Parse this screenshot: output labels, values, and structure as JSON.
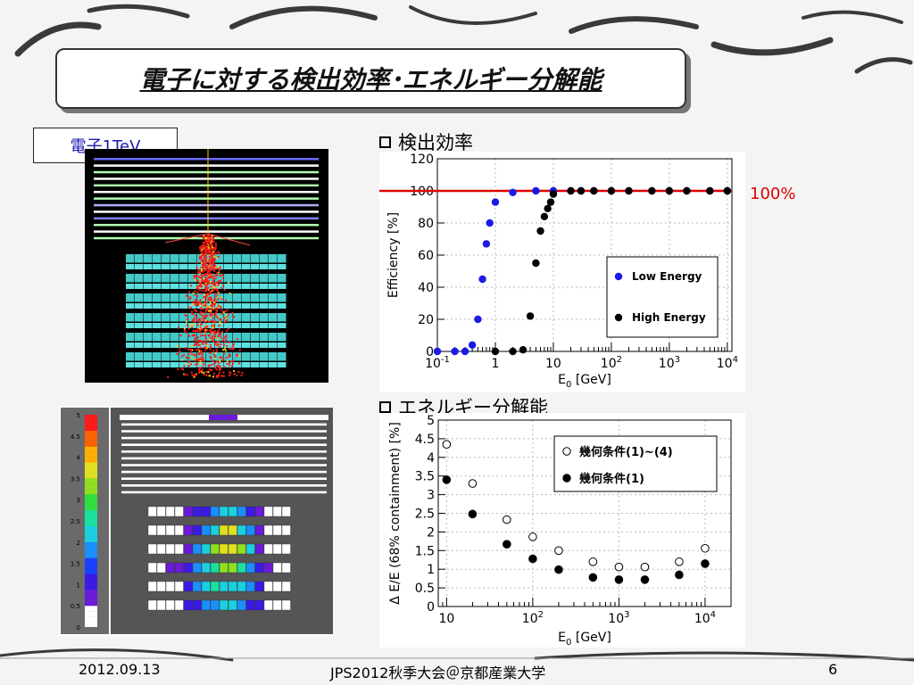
{
  "slide": {
    "title": "電子に対する検出効率･エネルギー分解能",
    "event_label": "電子1TeV",
    "section1": "検出効率",
    "section2": "エネルギー分解能",
    "annotation_100": "100%",
    "footer_date": "2012.09.13",
    "footer_center": "JPS2012秋季大会＠京都産業大学",
    "footer_page": "6"
  },
  "colors": {
    "accent_red": "#e00000",
    "low_energy": "#1a1ae6",
    "high_energy": "#000000"
  },
  "colorbar": {
    "ticks": [
      "5",
      "4.5",
      "4",
      "3.5",
      "3",
      "2.5",
      "2",
      "1.5",
      "1",
      "0.5",
      "0"
    ]
  },
  "chart_data": [
    {
      "type": "scatter",
      "xlabel": "E0 [GeV]",
      "ylabel": "Efficiency [%]",
      "x_scale": "log",
      "xlim": [
        0.1,
        12000
      ],
      "ylim": [
        0,
        120
      ],
      "x_ticks": [
        "10-1",
        "1",
        "10",
        "102",
        "103",
        "104"
      ],
      "y_ticks": [
        "0",
        "20",
        "40",
        "60",
        "80",
        "100",
        "120"
      ],
      "grid": true,
      "reference_line": 100,
      "legend_placement": "bottom-right",
      "series": [
        {
          "name": "Low Energy",
          "color": "#1a1ae6",
          "x": [
            0.1,
            0.2,
            0.3,
            0.4,
            0.5,
            0.6,
            0.7,
            0.8,
            1,
            2,
            5,
            10,
            20,
            30,
            50,
            100,
            200,
            500,
            1000,
            2000,
            5000,
            10000
          ],
          "y": [
            0,
            0,
            0,
            4,
            20,
            45,
            67,
            80,
            93,
            99,
            100,
            100,
            100,
            100,
            100,
            100,
            100,
            100,
            100,
            100,
            100,
            100
          ]
        },
        {
          "name": "High Energy",
          "color": "#000000",
          "x": [
            1,
            2,
            3,
            4,
            5,
            6,
            7,
            8,
            9,
            10,
            20,
            30,
            50,
            100,
            200,
            500,
            1000,
            2000,
            5000,
            10000
          ],
          "y": [
            0,
            0,
            1,
            22,
            55,
            75,
            84,
            89,
            93,
            98,
            100,
            100,
            100,
            100,
            100,
            100,
            100,
            100,
            100,
            100
          ]
        }
      ]
    },
    {
      "type": "scatter",
      "xlabel": "E0 [GeV]",
      "ylabel": "Δ E/E (68% containment) [%]",
      "x_scale": "log",
      "xlim": [
        8,
        20000
      ],
      "ylim": [
        0,
        5
      ],
      "x_ticks": [
        "10",
        "102",
        "103",
        "104"
      ],
      "y_ticks": [
        "0",
        "0.5",
        "1",
        "1.5",
        "2",
        "2.5",
        "3",
        "3.5",
        "4",
        "4.5",
        "5"
      ],
      "grid": true,
      "legend_placement": "top-right",
      "series": [
        {
          "name": "幾何条件(1)~(4)",
          "marker": "open",
          "x": [
            10,
            20,
            50,
            100,
            200,
            500,
            1000,
            2000,
            5000,
            10000
          ],
          "y": [
            4.35,
            3.3,
            2.33,
            1.87,
            1.5,
            1.2,
            1.06,
            1.06,
            1.2,
            1.56
          ]
        },
        {
          "name": "幾何条件(1)",
          "marker": "filled",
          "x": [
            10,
            20,
            50,
            100,
            200,
            500,
            1000,
            2000,
            5000,
            10000
          ],
          "y": [
            3.4,
            2.48,
            1.67,
            1.28,
            0.99,
            0.78,
            0.72,
            0.72,
            0.85,
            1.15
          ]
        }
      ]
    }
  ]
}
